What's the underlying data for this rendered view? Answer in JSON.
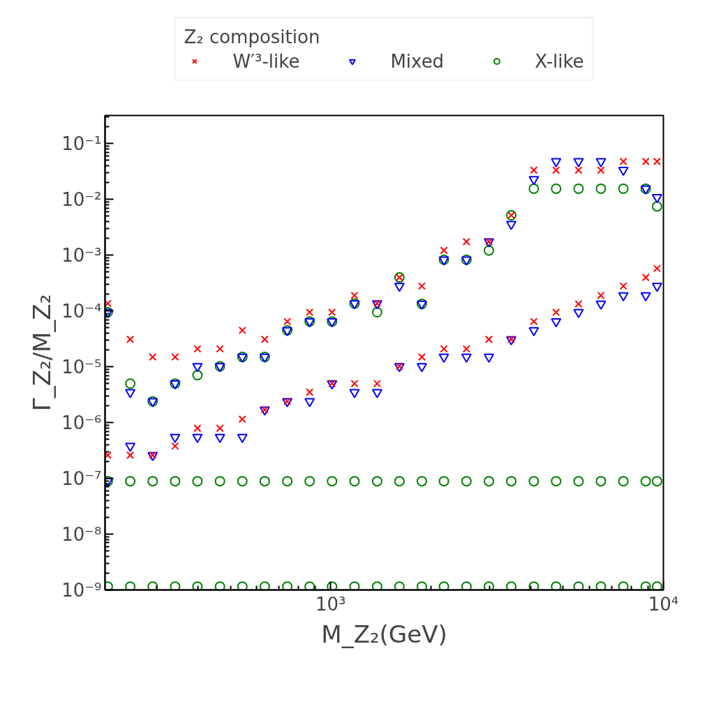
{
  "chart_data": {
    "type": "scatter",
    "xlabel": "M_Z₂(GeV)",
    "ylabel": "Γ_Z₂/M_Z₂",
    "legend_title": "Z₂ composition",
    "log": "xy",
    "grid": false,
    "legend": "top",
    "xlim": [
      210,
      10000
    ],
    "xticks": [
      {
        "value": 1000,
        "label": "10³"
      },
      {
        "value": 10000,
        "label": "10⁴"
      }
    ],
    "ylim": [
      1e-09,
      0.32
    ],
    "yticks": [
      {
        "value": 1e-09,
        "label": "10⁻⁹"
      },
      {
        "value": 1e-08,
        "label": "10⁻⁸"
      },
      {
        "value": 1e-07,
        "label": "10⁻⁷"
      },
      {
        "value": 1e-06,
        "label": "10⁻⁶"
      },
      {
        "value": 1e-05,
        "label": "10⁻⁵"
      },
      {
        "value": 0.0001,
        "label": "10⁻⁴"
      },
      {
        "value": 0.001,
        "label": "10⁻³"
      },
      {
        "value": 0.01,
        "label": "10⁻²"
      },
      {
        "value": 0.1,
        "label": "10⁻¹"
      }
    ],
    "series": [
      {
        "name": "X-like",
        "color": "#008000",
        "marker": "circle",
        "x": [
          214,
          214,
          214,
          250,
          250,
          250,
          292,
          292,
          292,
          341,
          341,
          341,
          398,
          398,
          398,
          465,
          465,
          465,
          543,
          543,
          543,
          634,
          634,
          634,
          741,
          741,
          741,
          865,
          865,
          865,
          1010,
          1010,
          1010,
          1180,
          1180,
          1180,
          1380,
          1380,
          1380,
          1610,
          1610,
          1610,
          1880,
          1880,
          1880,
          2190,
          2190,
          2190,
          2560,
          2560,
          2560,
          2990,
          2990,
          2990,
          3490,
          3490,
          3490,
          4080,
          4080,
          4080,
          4760,
          4760,
          4760,
          5560,
          5560,
          5560,
          6490,
          6490,
          6490,
          7580,
          7580,
          7580,
          8850,
          8850,
          8850,
          9570,
          9570,
          9570
        ],
        "values": [
          9.5e-05,
          8.9e-08,
          1.15e-09,
          5e-06,
          8.9e-08,
          1.15e-09,
          2.4e-06,
          8.9e-08,
          1.15e-09,
          5e-06,
          8.9e-08,
          1.15e-09,
          7.1e-06,
          8.9e-08,
          1.15e-09,
          1.02e-05,
          8.9e-08,
          1.15e-09,
          1.5e-05,
          8.9e-08,
          1.15e-09,
          1.5e-05,
          8.9e-08,
          1.15e-09,
          4.5e-05,
          8.9e-08,
          1.15e-09,
          6.5e-05,
          8.9e-08,
          1.15e-09,
          6.5e-05,
          8.9e-08,
          1.15e-09,
          0.000136,
          8.9e-08,
          1.15e-09,
          9.5e-05,
          8.9e-08,
          1.15e-09,
          0.0004,
          8.9e-08,
          1.15e-09,
          0.000134,
          8.9e-08,
          1.15e-09,
          0.00083,
          8.9e-08,
          1.15e-09,
          0.00083,
          8.9e-08,
          1.15e-09,
          0.00122,
          8.9e-08,
          1.15e-09,
          0.0052,
          8.9e-08,
          1.15e-09,
          0.0156,
          8.9e-08,
          1.15e-09,
          0.0156,
          8.9e-08,
          1.15e-09,
          0.0156,
          8.9e-08,
          1.15e-09,
          0.0156,
          8.9e-08,
          1.15e-09,
          0.0156,
          8.9e-08,
          1.15e-09,
          0.0156,
          8.9e-08,
          1.15e-09,
          0.0075,
          8.9e-08,
          1.15e-09
        ]
      },
      {
        "name": "Mixed",
        "color": "#0000ff",
        "marker": "triangle",
        "x": [
          214,
          214,
          250,
          250,
          292,
          292,
          341,
          341,
          398,
          398,
          465,
          465,
          543,
          543,
          634,
          634,
          741,
          741,
          865,
          865,
          1010,
          1010,
          1180,
          1180,
          1380,
          1380,
          1610,
          1610,
          1880,
          1880,
          2190,
          2190,
          2560,
          2560,
          2990,
          2990,
          3490,
          3490,
          4080,
          4080,
          4760,
          4760,
          5560,
          5560,
          6490,
          6490,
          7580,
          7580,
          8850,
          8850,
          9570,
          9570
        ],
        "values": [
          9.5e-05,
          8.9e-08,
          3.5e-06,
          3.8e-07,
          2.4e-06,
          2.6e-07,
          5e-06,
          5.5e-07,
          1.02e-05,
          5.5e-07,
          1.02e-05,
          5.5e-07,
          1.5e-05,
          5.5e-07,
          1.5e-05,
          1.7e-06,
          4.5e-05,
          2.4e-06,
          6.5e-05,
          2.4e-06,
          6.5e-05,
          5e-06,
          0.000136,
          3.5e-06,
          0.000136,
          3.5e-06,
          0.00028,
          1.02e-05,
          0.000134,
          1.02e-05,
          0.00083,
          1.5e-05,
          0.00083,
          1.5e-05,
          0.00175,
          1.5e-05,
          0.0036,
          3.1e-05,
          0.023,
          4.5e-05,
          0.048,
          6.5e-05,
          0.048,
          9.5e-05,
          0.048,
          0.000134,
          0.0335,
          0.00019,
          0.0156,
          0.00019,
          0.0109,
          0.00028
        ]
      },
      {
        "name": "W′³-like",
        "color": "#ff0000",
        "marker": "cross",
        "x": [
          214,
          214,
          250,
          250,
          292,
          292,
          341,
          341,
          398,
          398,
          465,
          465,
          543,
          543,
          634,
          634,
          741,
          741,
          865,
          865,
          1010,
          1010,
          1180,
          1180,
          1380,
          1380,
          1610,
          1610,
          1880,
          1880,
          2190,
          2190,
          2560,
          2560,
          2990,
          2990,
          3490,
          3490,
          4080,
          4080,
          4760,
          4760,
          5560,
          5560,
          6490,
          6490,
          7580,
          7580,
          8850,
          8850,
          9570,
          9570
        ],
        "values": [
          0.000136,
          2.6e-07,
          3.1e-05,
          2.6e-07,
          1.5e-05,
          2.6e-07,
          1.5e-05,
          3.8e-07,
          2.1e-05,
          7.9e-07,
          2.1e-05,
          7.9e-07,
          4.5e-05,
          1.15e-06,
          3.1e-05,
          1.7e-06,
          6.5e-05,
          2.4e-06,
          9.5e-05,
          3.5e-06,
          9.5e-05,
          5e-06,
          0.00019,
          5e-06,
          0.000136,
          5e-06,
          0.0004,
          1.02e-05,
          0.00028,
          1.5e-05,
          0.00122,
          2.1e-05,
          0.00175,
          2.1e-05,
          0.00175,
          3.1e-05,
          0.0052,
          3.1e-05,
          0.0335,
          6.5e-05,
          0.0335,
          9.5e-05,
          0.0335,
          0.000134,
          0.0335,
          0.00019,
          0.048,
          0.00028,
          0.048,
          0.0004,
          0.048,
          0.00058
        ]
      }
    ]
  }
}
